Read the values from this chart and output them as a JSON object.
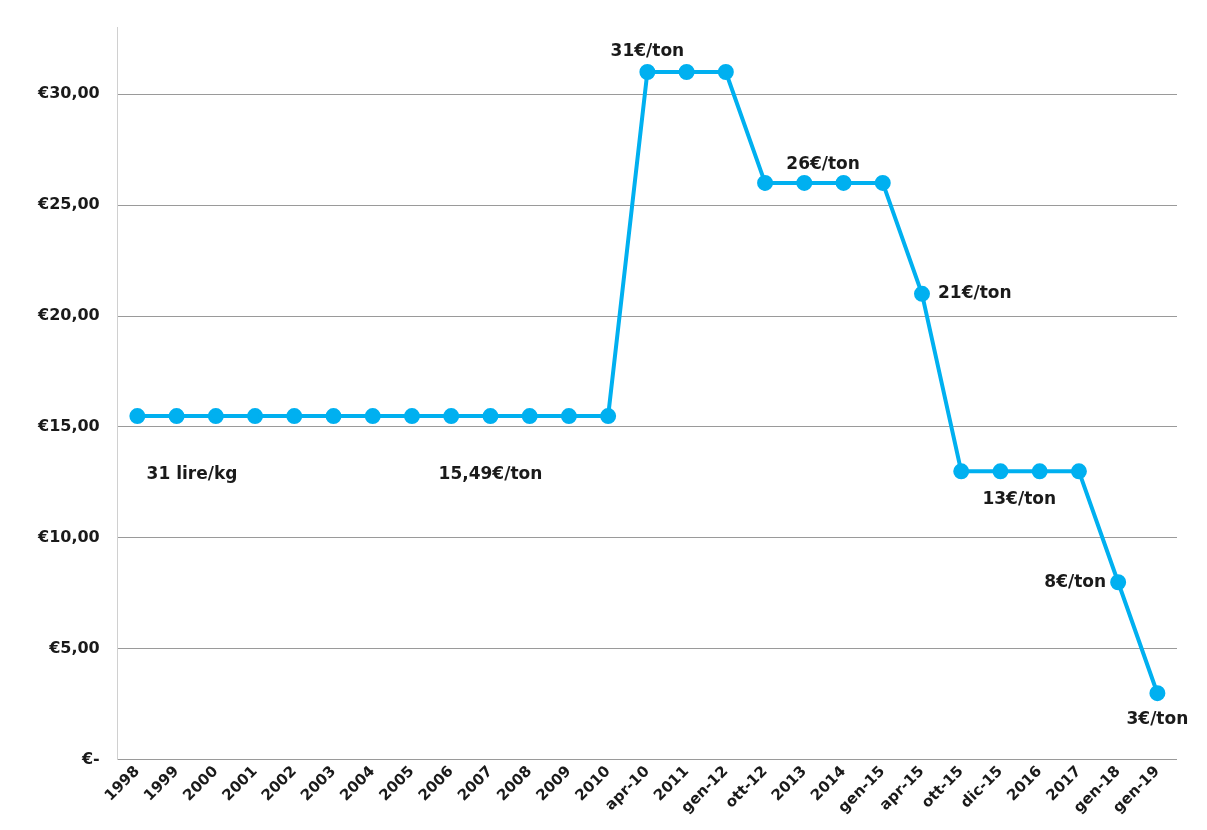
{
  "chart_data": {
    "type": "line",
    "categories": [
      "1998",
      "1999",
      "2000",
      "2001",
      "2002",
      "2003",
      "2004",
      "2005",
      "2006",
      "2007",
      "2008",
      "2009",
      "2010",
      "apr-10",
      "2011",
      "gen-12",
      "ott-12",
      "2013",
      "2014",
      "gen-15",
      "apr-15",
      "ott-15",
      "dic-15",
      "2016",
      "2017",
      "gen-18",
      "gen-19"
    ],
    "series": [
      {
        "color": "#00b0f0",
        "values": [
          15.49,
          15.49,
          15.49,
          15.49,
          15.49,
          15.49,
          15.49,
          15.49,
          15.49,
          15.49,
          15.49,
          15.49,
          15.49,
          31,
          31,
          31,
          26,
          26,
          26,
          26,
          21,
          13,
          13,
          13,
          13,
          8,
          3
        ]
      }
    ],
    "ylim": [
      0,
      33
    ],
    "yticks": [
      {
        "value": 0,
        "label": "€-"
      },
      {
        "value": 5,
        "label": "€5,00"
      },
      {
        "value": 10,
        "label": "€10,00"
      },
      {
        "value": 15,
        "label": "€15,00"
      },
      {
        "value": 20,
        "label": "€20,00"
      },
      {
        "value": 25,
        "label": "€25,00"
      },
      {
        "value": 30,
        "label": "€30,00"
      }
    ],
    "grid": "y",
    "legend": false,
    "marker": "circle",
    "line_style": "solid",
    "annotations": [
      {
        "text": "31 lire/kg",
        "x": "1999",
        "y": 15.49
      },
      {
        "text": "15,49€/ton",
        "x": "2007",
        "y": 15.49
      },
      {
        "text": "31€/ton",
        "x": "apr-10",
        "y": 31
      },
      {
        "text": "26€/ton",
        "x": "2013",
        "y": 26
      },
      {
        "text": "21€/ton",
        "x": "apr-15",
        "y": 21
      },
      {
        "text": "13€/ton",
        "x": "dic-15",
        "y": 13
      },
      {
        "text": "8€/ton",
        "x": "gen-18",
        "y": 8
      },
      {
        "text": "3€/ton",
        "x": "gen-19",
        "y": 3
      }
    ]
  }
}
